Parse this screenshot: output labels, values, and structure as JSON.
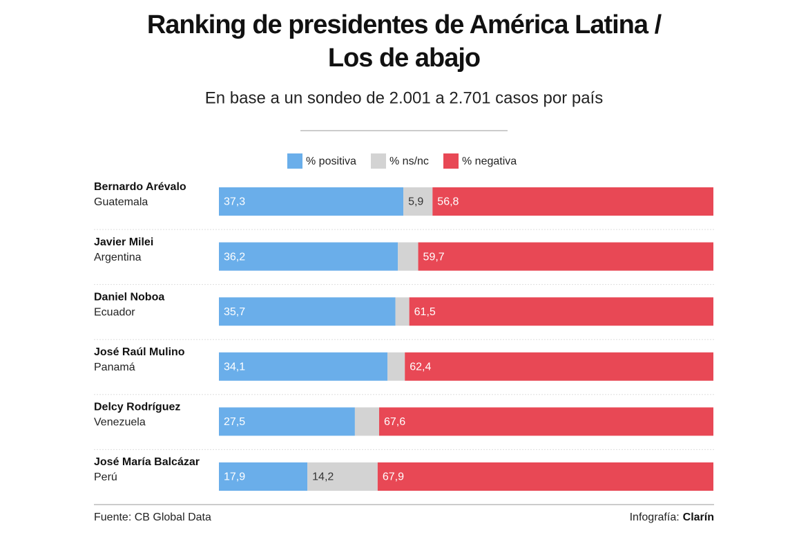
{
  "chart_data": {
    "type": "stacked-bar-horizontal",
    "title": [
      "Ranking de presidentes de América Latina /",
      "Los de abajo"
    ],
    "subtitle": "En base a un sondeo de 2.001 a 2.701 casos por país",
    "categories": [
      "Bernardo Arévalo",
      "Javier Milei",
      "Daniel Noboa",
      "José Raúl Mulino",
      "Delcy Rodríguez",
      "José María Balcázar"
    ],
    "countries": [
      "Guatemala",
      "Argentina",
      "Ecuador",
      "Panamá",
      "Venezuela",
      "Perú"
    ],
    "xlim": [
      0,
      100
    ],
    "series": [
      {
        "name": "% positiva",
        "color": "#6aaeea",
        "label_color": "#ffffff",
        "values": [
          37.3,
          36.2,
          35.7,
          34.1,
          27.5,
          17.9
        ],
        "value_labels": [
          "37,3",
          "36,2",
          "35,7",
          "34,1",
          "27,5",
          "17,9"
        ]
      },
      {
        "name": "% ns/nc",
        "color": "#d3d3d3",
        "label_color": "#333333",
        "values": [
          5.9,
          4.1,
          2.8,
          3.5,
          4.9,
          14.2
        ],
        "value_labels": [
          "5,9",
          null,
          null,
          null,
          null,
          "14,2"
        ]
      },
      {
        "name": "% negativa",
        "color": "#e84855",
        "label_color": "#ffffff",
        "values": [
          56.8,
          59.7,
          61.5,
          62.4,
          67.6,
          67.9
        ],
        "value_labels": [
          "56,8",
          "59,7",
          "61,5",
          "62,4",
          "67,6",
          "67,9"
        ]
      }
    ],
    "source": "Fuente: CB Global Data",
    "credit_label": "Infografía:",
    "credit_brand": "Clarín"
  }
}
